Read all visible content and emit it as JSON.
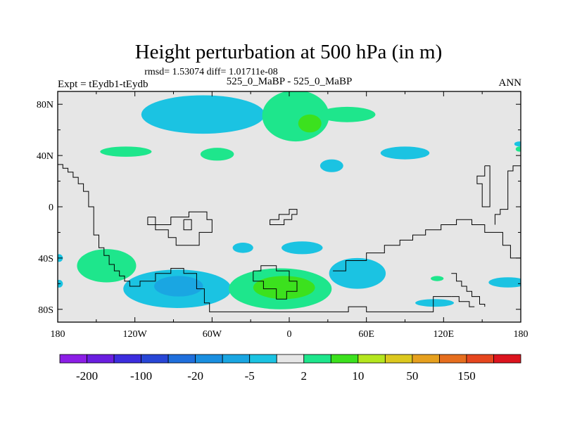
{
  "chart_data": {
    "type": "contour-map",
    "title": "Height perturbation at 500 hPa (in m)",
    "subtitle": "rmsd= 1.53074 diff= 1.01711e-08",
    "left_label": "Expt = tEydb1-tEydb",
    "center_label": "525_0_MaBP - 525_0_MaBP",
    "right_label": "ANN",
    "x_ticks": [
      {
        "lon": -180,
        "label": "180"
      },
      {
        "lon": -120,
        "label": "120W"
      },
      {
        "lon": -60,
        "label": "60W"
      },
      {
        "lon": 0,
        "label": "0"
      },
      {
        "lon": 60,
        "label": "60E"
      },
      {
        "lon": 120,
        "label": "120E"
      },
      {
        "lon": 180,
        "label": "180"
      }
    ],
    "y_ticks": [
      {
        "lat": 80,
        "label": "80N"
      },
      {
        "lat": 40,
        "label": "40N"
      },
      {
        "lat": 0,
        "label": "0"
      },
      {
        "lat": -40,
        "label": "40S"
      },
      {
        "lat": -80,
        "label": "80S"
      }
    ],
    "xlim": [
      -180,
      180
    ],
    "ylim": [
      -90,
      90
    ],
    "colorbar": {
      "colors": [
        "#8c1ee6",
        "#6a1ee0",
        "#3c2dde",
        "#2846d6",
        "#1f6fdc",
        "#1a8fe0",
        "#1aa6e2",
        "#1bc3e2",
        "#e6e6e6",
        "#1ee68c",
        "#3ce11e",
        "#b4e61e",
        "#dcc81e",
        "#e6a01e",
        "#e66e1e",
        "#e6461e",
        "#dc141e"
      ],
      "labels": [
        {
          "index": 1,
          "text": "-200"
        },
        {
          "index": 3,
          "text": "-100"
        },
        {
          "index": 5,
          "text": "-20"
        },
        {
          "index": 7,
          "text": "-5"
        },
        {
          "index": 9,
          "text": "2"
        },
        {
          "index": 11,
          "text": "10"
        },
        {
          "index": 13,
          "text": "50"
        },
        {
          "index": 15,
          "text": "150"
        }
      ]
    },
    "field_colors": {
      "background": "#e6e6e6",
      "neg_light": "#1bc3e2",
      "neg_mid": "#1aa6e2",
      "pos_light": "#1ee68c",
      "pos_mid": "#3ce11e"
    },
    "anomalies": [
      {
        "name": "north-pacific-negative",
        "lon": -67,
        "lat": 72,
        "rlon": 48,
        "rlat": 15,
        "level": "neg_light"
      },
      {
        "name": "north-atlantic-positive",
        "lon": 5,
        "lat": 71,
        "rlon": 26,
        "rlat": 20,
        "level": "pos_light"
      },
      {
        "name": "north-atlantic-tail-positive",
        "lon": 45,
        "lat": 72,
        "rlon": 22,
        "rlat": 6,
        "level": "pos_light"
      },
      {
        "name": "arctic-positive-core",
        "lon": 16,
        "lat": 65,
        "rlon": 9,
        "rlat": 7,
        "level": "pos_mid"
      },
      {
        "name": "pacific-40n-positive",
        "lon": -127,
        "lat": 43,
        "rlon": 20,
        "rlat": 4,
        "level": "pos_light"
      },
      {
        "name": "america-40n-positive",
        "lon": -56,
        "lat": 41,
        "rlon": 13,
        "rlat": 5,
        "level": "pos_light"
      },
      {
        "name": "asia-40n-negative",
        "lon": 90,
        "lat": 42,
        "rlon": 19,
        "rlat": 5,
        "level": "neg_light"
      },
      {
        "name": "siberia-30n-negative",
        "lon": 33,
        "lat": 32,
        "rlon": 9,
        "rlat": 5,
        "level": "neg_light"
      },
      {
        "name": "east-edge-negative",
        "lon": 179,
        "lat": 49,
        "rlon": 4,
        "rlat": 2,
        "level": "neg_light"
      },
      {
        "name": "east-edge-positive",
        "lon": 179,
        "lat": 45,
        "rlon": 3,
        "rlat": 2,
        "level": "pos_light"
      },
      {
        "name": "atlantic-40s-negative-a",
        "lon": -36,
        "lat": -32,
        "rlon": 8,
        "rlat": 4,
        "level": "neg_light"
      },
      {
        "name": "atlantic-40s-negative-b",
        "lon": 10,
        "lat": -32,
        "rlon": 16,
        "rlat": 5,
        "level": "neg_light"
      },
      {
        "name": "indian-ocean-negative",
        "lon": 53,
        "lat": -52,
        "rlon": 22,
        "rlat": 12,
        "level": "neg_light"
      },
      {
        "name": "southern-pacific-positive",
        "lon": -142,
        "lat": -46,
        "rlon": 23,
        "rlat": 13,
        "level": "pos_light"
      },
      {
        "name": "southern-pacific-negative",
        "lon": -87,
        "lat": -64,
        "rlon": 42,
        "rlat": 15,
        "level": "neg_light"
      },
      {
        "name": "southern-pacific-negative-core",
        "lon": -86,
        "lat": -62,
        "rlon": 19,
        "rlat": 8,
        "level": "neg_mid"
      },
      {
        "name": "south-atlantic-positive",
        "lon": -7,
        "lat": -64,
        "rlon": 40,
        "rlat": 16,
        "level": "pos_light"
      },
      {
        "name": "south-atlantic-positive-core",
        "lon": -4,
        "lat": -63,
        "rlon": 24,
        "rlat": 9,
        "level": "pos_mid"
      },
      {
        "name": "australia-negative",
        "lon": 113,
        "lat": -75,
        "rlon": 15,
        "rlat": 3,
        "level": "neg_light"
      },
      {
        "name": "australia-positive",
        "lon": 115,
        "lat": -56,
        "rlon": 5,
        "rlat": 2,
        "level": "pos_light"
      },
      {
        "name": "southeast-negative",
        "lon": 170,
        "lat": -59,
        "rlon": 15,
        "rlat": 4,
        "level": "neg_light"
      },
      {
        "name": "west-edge-negative",
        "lon": -179,
        "lat": -60,
        "rlon": 3,
        "rlat": 3,
        "level": "neg_light"
      },
      {
        "name": "west-edge-negative-b",
        "lon": -179,
        "lat": -40,
        "rlon": 3,
        "rlat": 3,
        "level": "neg_light"
      }
    ],
    "continents": [
      {
        "name": "west-continent-outline",
        "points": [
          [
            -180,
            33
          ],
          [
            -176,
            33
          ],
          [
            -176,
            30
          ],
          [
            -172,
            30
          ],
          [
            -172,
            27
          ],
          [
            -168,
            27
          ],
          [
            -168,
            23
          ],
          [
            -164,
            23
          ],
          [
            -164,
            18
          ],
          [
            -160,
            18
          ],
          [
            -160,
            12
          ],
          [
            -156,
            12
          ],
          [
            -156,
            0
          ],
          [
            -152,
            0
          ],
          [
            -152,
            -22
          ],
          [
            -148,
            -22
          ],
          [
            -148,
            -32
          ],
          [
            -144,
            -32
          ],
          [
            -144,
            -38
          ],
          [
            -140,
            -38
          ],
          [
            -140,
            -45
          ],
          [
            -136,
            -45
          ],
          [
            -136,
            -50
          ],
          [
            -132,
            -50
          ],
          [
            -132,
            -54
          ],
          [
            -128,
            -54
          ],
          [
            -128,
            -58
          ],
          [
            -124,
            -58
          ],
          [
            -124,
            -62
          ],
          [
            -116,
            -62
          ],
          [
            -116,
            -58
          ],
          [
            -104,
            -58
          ],
          [
            -104,
            -52
          ],
          [
            -92,
            -52
          ],
          [
            -92,
            -48
          ],
          [
            -82,
            -48
          ],
          [
            -82,
            -52
          ],
          [
            -72,
            -52
          ],
          [
            -72,
            -64
          ],
          [
            -66,
            -64
          ],
          [
            -66,
            -75
          ],
          [
            -62,
            -75
          ],
          [
            -62,
            -82
          ],
          [
            46,
            -82
          ],
          [
            46,
            -78
          ],
          [
            60,
            -78
          ],
          [
            60,
            -82
          ],
          [
            112,
            -82
          ],
          [
            112,
            -70
          ],
          [
            126,
            -70
          ]
        ]
      },
      {
        "name": "central-continent-outline",
        "points": [
          [
            -110,
            -8
          ],
          [
            -104,
            -8
          ],
          [
            -104,
            -14
          ],
          [
            -92,
            -14
          ],
          [
            -92,
            -8
          ],
          [
            -78,
            -8
          ],
          [
            -78,
            -4
          ],
          [
            -64,
            -4
          ],
          [
            -64,
            -10
          ],
          [
            -60,
            -10
          ],
          [
            -60,
            -20
          ],
          [
            -70,
            -20
          ],
          [
            -70,
            -30
          ],
          [
            -88,
            -30
          ],
          [
            -88,
            -24
          ],
          [
            -94,
            -24
          ],
          [
            -94,
            -18
          ],
          [
            -104,
            -18
          ],
          [
            -104,
            -14
          ],
          [
            -110,
            -14
          ],
          [
            -110,
            -8
          ]
        ]
      },
      {
        "name": "central-continent-inner",
        "points": [
          [
            -82,
            -10
          ],
          [
            -76,
            -10
          ],
          [
            -76,
            -18
          ],
          [
            -82,
            -18
          ],
          [
            -82,
            -10
          ]
        ]
      },
      {
        "name": "mid-ocean-island",
        "points": [
          [
            -15,
            -10
          ],
          [
            -8,
            -10
          ],
          [
            -8,
            -6
          ],
          [
            0,
            -6
          ],
          [
            0,
            -2
          ],
          [
            6,
            -2
          ],
          [
            6,
            -6
          ],
          [
            2,
            -6
          ],
          [
            2,
            -10
          ],
          [
            -4,
            -10
          ],
          [
            -4,
            -14
          ],
          [
            -15,
            -14
          ],
          [
            -15,
            -10
          ]
        ]
      },
      {
        "name": "south-polar-blob",
        "points": [
          [
            -28,
            -50
          ],
          [
            -22,
            -50
          ],
          [
            -22,
            -46
          ],
          [
            -10,
            -46
          ],
          [
            -10,
            -50
          ],
          [
            0,
            -50
          ],
          [
            0,
            -58
          ],
          [
            6,
            -58
          ],
          [
            6,
            -66
          ],
          [
            -2,
            -66
          ],
          [
            -2,
            -72
          ],
          [
            -10,
            -72
          ],
          [
            -10,
            -64
          ],
          [
            -20,
            -64
          ],
          [
            -20,
            -58
          ],
          [
            -28,
            -58
          ],
          [
            -28,
            -50
          ]
        ]
      },
      {
        "name": "east-continent-outline",
        "points": [
          [
            180,
            -40
          ],
          [
            172,
            -40
          ],
          [
            172,
            -30
          ],
          [
            166,
            -30
          ],
          [
            166,
            -20
          ],
          [
            152,
            -20
          ],
          [
            152,
            -14
          ],
          [
            142,
            -14
          ],
          [
            142,
            -10
          ],
          [
            130,
            -10
          ],
          [
            130,
            -14
          ],
          [
            118,
            -14
          ],
          [
            118,
            -18
          ],
          [
            106,
            -18
          ],
          [
            106,
            -22
          ],
          [
            96,
            -22
          ],
          [
            96,
            -26
          ],
          [
            86,
            -26
          ],
          [
            86,
            -30
          ],
          [
            74,
            -30
          ],
          [
            74,
            -36
          ],
          [
            60,
            -36
          ],
          [
            60,
            -42
          ],
          [
            44,
            -42
          ],
          [
            44,
            -50
          ],
          [
            34,
            -50
          ]
        ]
      },
      {
        "name": "east-coastline",
        "points": [
          [
            180,
            32
          ],
          [
            174,
            32
          ],
          [
            174,
            28
          ],
          [
            170,
            28
          ],
          [
            170,
            -2
          ],
          [
            164,
            -2
          ],
          [
            164,
            -6
          ],
          [
            160,
            -6
          ],
          [
            160,
            -14
          ]
        ]
      },
      {
        "name": "east-peninsula",
        "points": [
          [
            152,
            32
          ],
          [
            156,
            32
          ],
          [
            156,
            0
          ],
          [
            150,
            0
          ],
          [
            150,
            18
          ],
          [
            146,
            18
          ],
          [
            146,
            24
          ],
          [
            152,
            24
          ],
          [
            152,
            32
          ]
        ]
      },
      {
        "name": "southeast-chain",
        "points": [
          [
            126,
            -52
          ],
          [
            130,
            -52
          ],
          [
            130,
            -58
          ],
          [
            134,
            -58
          ],
          [
            134,
            -62
          ],
          [
            138,
            -62
          ],
          [
            138,
            -66
          ],
          [
            142,
            -66
          ],
          [
            142,
            -70
          ],
          [
            148,
            -70
          ],
          [
            148,
            -76
          ],
          [
            152,
            -76
          ],
          [
            152,
            -78
          ]
        ]
      },
      {
        "name": "southeast-chain-b",
        "points": [
          [
            126,
            -70
          ],
          [
            132,
            -70
          ],
          [
            132,
            -74
          ],
          [
            140,
            -74
          ],
          [
            140,
            -78
          ],
          [
            144,
            -78
          ]
        ]
      }
    ]
  }
}
